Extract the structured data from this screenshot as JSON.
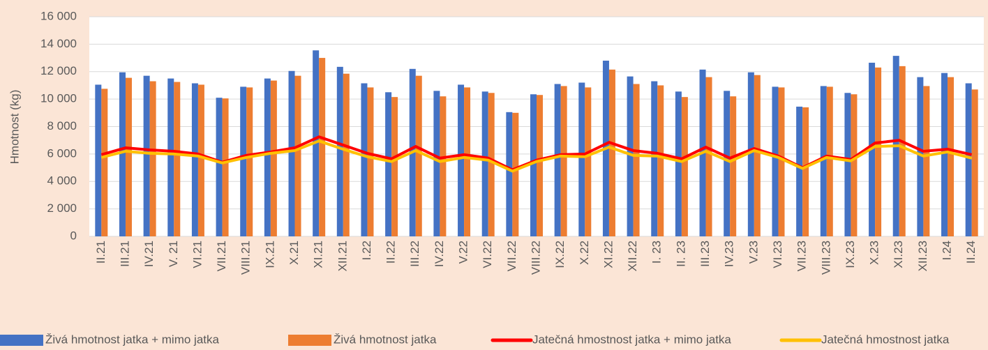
{
  "chart_data": {
    "type": "bar",
    "ylabel": "Hmotnost (kg)",
    "categories": [
      "II.21",
      "III.21",
      "IV.21",
      "V. 21",
      "VI.21",
      "VII.21",
      "VIII.21",
      "IX.21",
      "X.21",
      "XI.21",
      "XII.21",
      "I.22",
      "II.22",
      "III.22",
      "IV.22",
      "V.22",
      "VI.22",
      "VII.22",
      "VIII.22",
      "IX.22",
      "X.22",
      "XI.22",
      "XII.22",
      "I. 23",
      "II. 23",
      "III.23",
      "IV.23",
      "V.23",
      "VI.23",
      "VII.23",
      "VIII.23",
      "IX.23",
      "X.23",
      "XI.23",
      "XII.23",
      "I.24",
      "II.24"
    ],
    "series": [
      {
        "name": "Živá hmotnost jatka + mimo jatka",
        "type": "bar",
        "color": "#4472c4",
        "values": [
          11050,
          11950,
          11700,
          11500,
          11150,
          10100,
          10900,
          11500,
          12050,
          13550,
          12350,
          11150,
          10500,
          12200,
          10600,
          11050,
          10550,
          9050,
          10350,
          11100,
          11200,
          12800,
          11650,
          11300,
          10550,
          12150,
          10600,
          11950,
          10900,
          9450,
          10950,
          10450,
          12650,
          13150,
          11600,
          11900,
          11150
        ]
      },
      {
        "name": "Živá hmotnost jatka",
        "type": "bar",
        "color": "#ed7d31",
        "values": [
          10750,
          11550,
          11300,
          11250,
          11050,
          10050,
          10850,
          11350,
          11700,
          13000,
          11850,
          10850,
          10150,
          11700,
          10200,
          10850,
          10450,
          9000,
          10300,
          10950,
          10850,
          12150,
          11100,
          11000,
          10150,
          11600,
          10200,
          11750,
          10850,
          9400,
          10900,
          10350,
          12300,
          12400,
          10950,
          11600,
          10700
        ]
      },
      {
        "name": "Jatečná hmostnost jatka + mimo jatka",
        "type": "line",
        "color": "#ff0000",
        "values": [
          5950,
          6450,
          6300,
          6200,
          6000,
          5400,
          5900,
          6150,
          6450,
          7250,
          6650,
          6050,
          5650,
          6550,
          5700,
          5950,
          5700,
          4850,
          5550,
          5950,
          6000,
          6850,
          6250,
          6050,
          5650,
          6500,
          5700,
          6400,
          5850,
          5000,
          5850,
          5600,
          6800,
          7000,
          6200,
          6350,
          5950
        ]
      },
      {
        "name": "Jatečná hmostnost jatka",
        "type": "line",
        "color": "#ffc000",
        "values": [
          5750,
          6200,
          6050,
          6000,
          5850,
          5350,
          5750,
          6050,
          6250,
          6950,
          6350,
          5800,
          5450,
          6250,
          5450,
          5750,
          5550,
          4750,
          5450,
          5850,
          5800,
          6500,
          5900,
          5850,
          5450,
          6200,
          5450,
          6250,
          5750,
          4950,
          5750,
          5500,
          6550,
          6600,
          5850,
          6150,
          5700
        ]
      }
    ],
    "ylim": [
      0,
      16000
    ],
    "yticks": [
      0,
      {
        "value": 2000,
        "label": "2 000"
      },
      {
        "value": 4000,
        "label": "4 000"
      },
      {
        "value": 6000,
        "label": "6 000"
      },
      {
        "value": 8000,
        "label": "8 000"
      },
      {
        "value": 10000,
        "label": "10 000"
      },
      {
        "value": 12000,
        "label": "12 000"
      },
      {
        "value": 14000,
        "label": "14 000"
      },
      {
        "value": 16000,
        "label": "16 000"
      }
    ],
    "grid": true,
    "legend": "bottom"
  }
}
